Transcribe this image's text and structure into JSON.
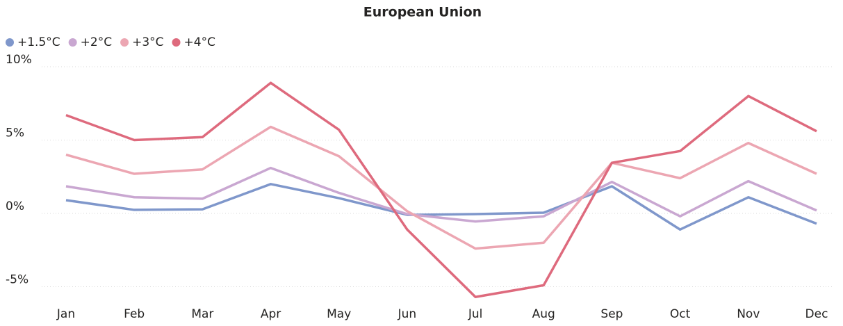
{
  "chart_data": {
    "type": "line",
    "title": "European Union",
    "categories": [
      "Jan",
      "Feb",
      "Mar",
      "Apr",
      "May",
      "Jun",
      "Jul",
      "Aug",
      "Sep",
      "Oct",
      "Nov",
      "Dec"
    ],
    "series": [
      {
        "name": "+1.5°C",
        "color": "#7f97cb",
        "values": [
          0.9,
          0.24,
          0.28,
          2.0,
          1.04,
          -0.1,
          -0.05,
          0.05,
          1.85,
          -1.1,
          1.1,
          -0.7
        ]
      },
      {
        "name": "+2°C",
        "color": "#c9a7d1",
        "values": [
          1.85,
          1.1,
          1.0,
          3.1,
          1.4,
          -0.05,
          -0.55,
          -0.2,
          2.15,
          -0.2,
          2.2,
          0.2
        ]
      },
      {
        "name": "+3°C",
        "color": "#eca6b2",
        "values": [
          4.0,
          2.7,
          3.0,
          5.9,
          3.9,
          0.15,
          -2.4,
          -2.0,
          3.45,
          2.4,
          4.8,
          2.7
        ]
      },
      {
        "name": "+4°C",
        "color": "#de6a7d",
        "values": [
          6.7,
          5.0,
          5.2,
          8.9,
          5.7,
          -1.1,
          -5.7,
          -4.9,
          3.45,
          4.25,
          8.0,
          5.6
        ]
      }
    ],
    "ylim": [
      -5.5,
      10
    ],
    "yticks": [
      {
        "value": -5,
        "label": "-5%"
      },
      {
        "value": 0,
        "label": "0%"
      },
      {
        "value": 5,
        "label": "5%"
      },
      {
        "value": 10,
        "label": "10%"
      }
    ],
    "grid": true,
    "legend": "top-left"
  }
}
